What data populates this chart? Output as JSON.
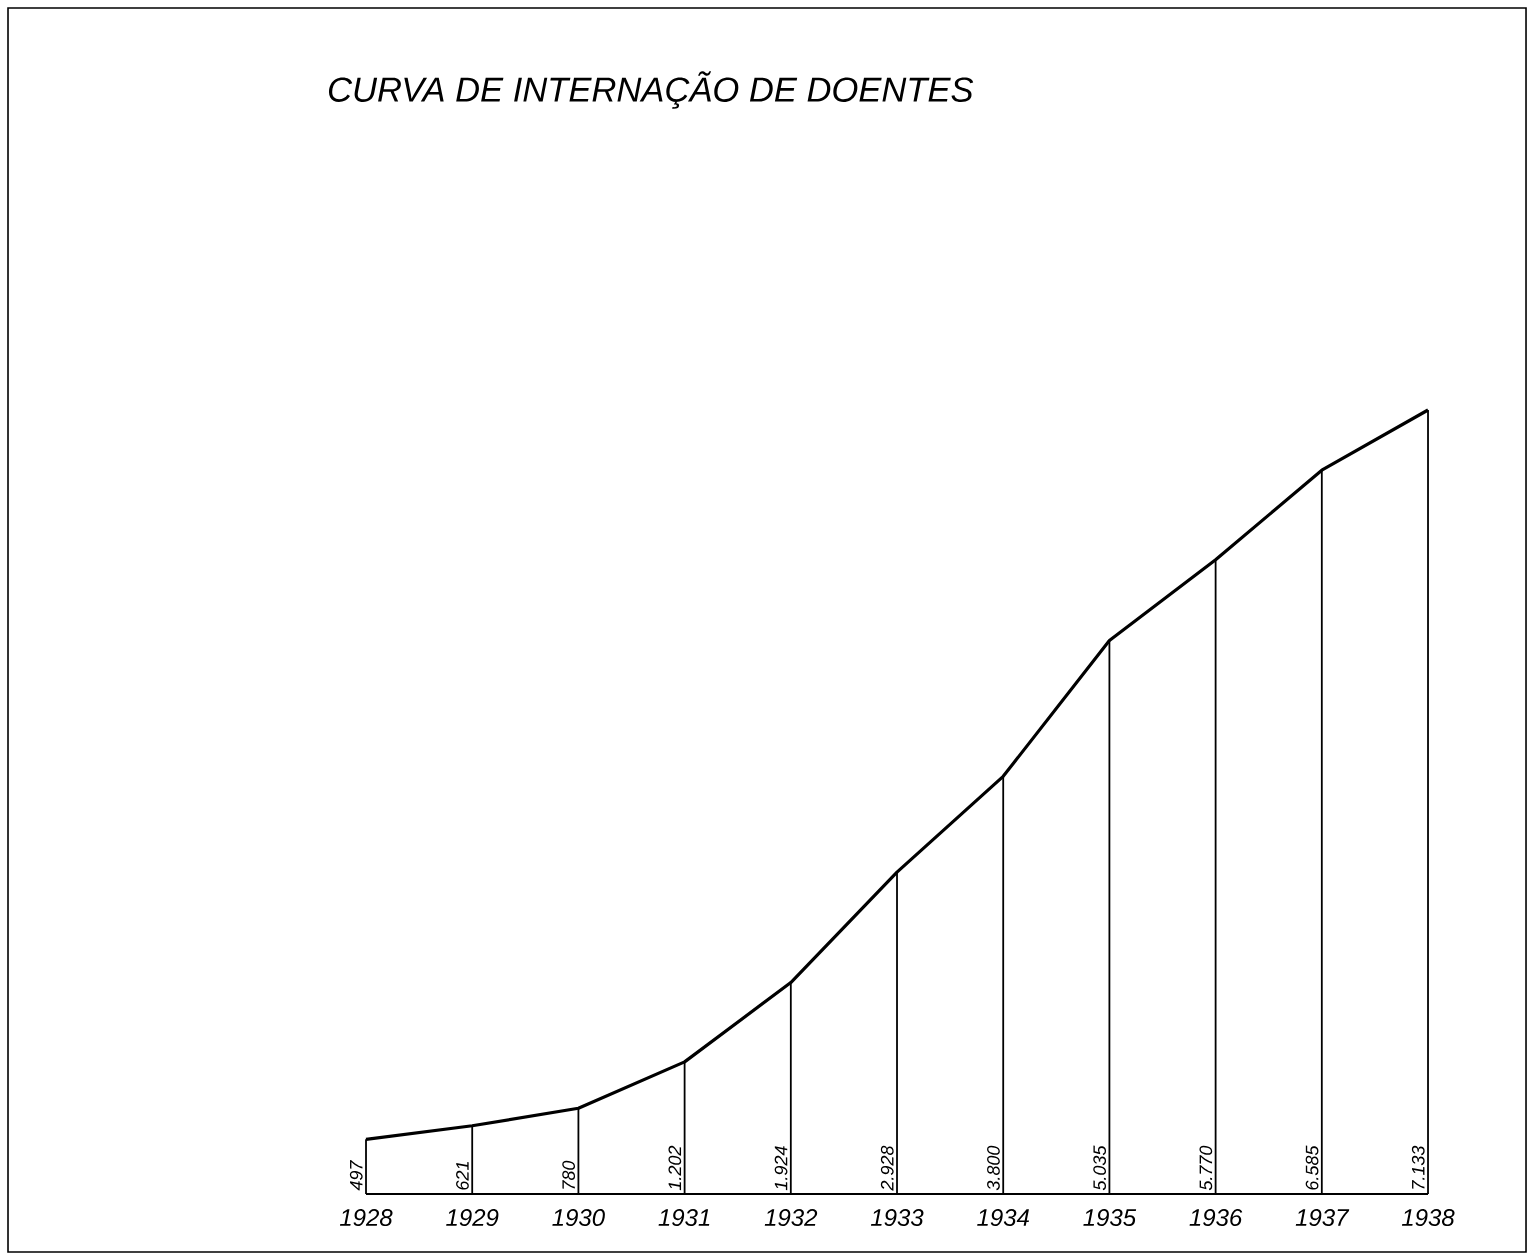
{
  "chart_data": {
    "type": "line",
    "title": "CURVA DE INTERNAÇÃO DE DOENTES",
    "categories": [
      "1928",
      "1929",
      "1930",
      "1931",
      "1932",
      "1933",
      "1934",
      "1935",
      "1936",
      "1937",
      "1938"
    ],
    "values": [
      497,
      621,
      780,
      1202,
      1924,
      2928,
      3800,
      5035,
      5770,
      6585,
      7133
    ],
    "value_labels": [
      "497",
      "621",
      "780",
      "1.202",
      "1.924",
      "2.928",
      "3.800",
      "5.035",
      "5.770",
      "6.585",
      "7.133"
    ],
    "color": "#000000",
    "marker": "none",
    "line_style": "solid",
    "grid": "x"
  }
}
